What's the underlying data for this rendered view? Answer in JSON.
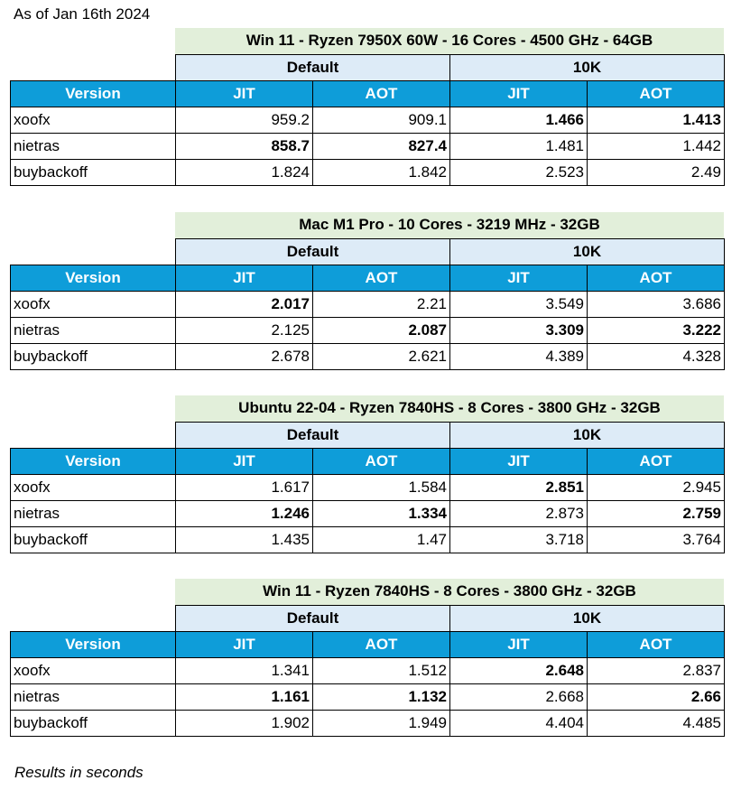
{
  "date_note": "As of Jan 16th 2024",
  "footnote": "Results in seconds",
  "column_headers": {
    "version": "Version",
    "group_default": "Default",
    "group_10k": "10K",
    "jit": "JIT",
    "aot": "AOT"
  },
  "blocks": [
    {
      "title": "Win 11 - Ryzen 7950X 60W - 16 Cores - 4500 GHz - 64GB",
      "rows": [
        {
          "version": "xoofx",
          "values": [
            "959.2",
            "909.1",
            "1.466",
            "1.413"
          ],
          "bold": [
            false,
            false,
            true,
            true
          ]
        },
        {
          "version": "nietras",
          "values": [
            "858.7",
            "827.4",
            "1.481",
            "1.442"
          ],
          "bold": [
            true,
            true,
            false,
            false
          ]
        },
        {
          "version": "buybackoff",
          "values": [
            "1.824",
            "1.842",
            "2.523",
            "2.49"
          ],
          "bold": [
            false,
            false,
            false,
            false
          ]
        }
      ]
    },
    {
      "title": "Mac M1 Pro - 10 Cores - 3219 MHz - 32GB",
      "rows": [
        {
          "version": "xoofx",
          "values": [
            "2.017",
            "2.21",
            "3.549",
            "3.686"
          ],
          "bold": [
            true,
            false,
            false,
            false
          ]
        },
        {
          "version": "nietras",
          "values": [
            "2.125",
            "2.087",
            "3.309",
            "3.222"
          ],
          "bold": [
            false,
            true,
            true,
            true
          ]
        },
        {
          "version": "buybackoff",
          "values": [
            "2.678",
            "2.621",
            "4.389",
            "4.328"
          ],
          "bold": [
            false,
            false,
            false,
            false
          ]
        }
      ]
    },
    {
      "title": "Ubuntu 22-04 - Ryzen 7840HS - 8 Cores - 3800 GHz - 32GB",
      "rows": [
        {
          "version": "xoofx",
          "values": [
            "1.617",
            "1.584",
            "2.851",
            "2.945"
          ],
          "bold": [
            false,
            false,
            true,
            false
          ]
        },
        {
          "version": "nietras",
          "values": [
            "1.246",
            "1.334",
            "2.873",
            "2.759"
          ],
          "bold": [
            true,
            true,
            false,
            true
          ]
        },
        {
          "version": "buybackoff",
          "values": [
            "1.435",
            "1.47",
            "3.718",
            "3.764"
          ],
          "bold": [
            false,
            false,
            false,
            false
          ]
        }
      ]
    },
    {
      "title": "Win 11 - Ryzen 7840HS - 8 Cores - 3800 GHz - 32GB",
      "rows": [
        {
          "version": "xoofx",
          "values": [
            "1.341",
            "1.512",
            "2.648",
            "2.837"
          ],
          "bold": [
            false,
            false,
            true,
            false
          ]
        },
        {
          "version": "nietras",
          "values": [
            "1.161",
            "1.132",
            "2.668",
            "2.66"
          ],
          "bold": [
            true,
            true,
            false,
            true
          ]
        },
        {
          "version": "buybackoff",
          "values": [
            "1.902",
            "1.949",
            "4.404",
            "4.485"
          ],
          "bold": [
            false,
            false,
            false,
            false
          ]
        }
      ]
    }
  ]
}
